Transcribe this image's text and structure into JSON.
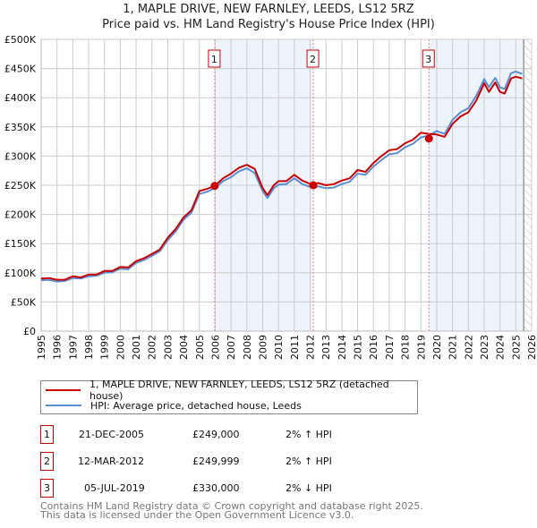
{
  "title": "1, MAPLE DRIVE, NEW FARNLEY, LEEDS, LS12 5RZ",
  "subtitle": "Price paid vs. HM Land Registry's House Price Index (HPI)",
  "chart_data": {
    "type": "line",
    "xlim": [
      1995,
      2026
    ],
    "ylim": [
      0,
      500000
    ],
    "x_ticks": [
      "1995",
      "1996",
      "1997",
      "1998",
      "1999",
      "2000",
      "2001",
      "2002",
      "2003",
      "2004",
      "2005",
      "2006",
      "2007",
      "2008",
      "2009",
      "2010",
      "2011",
      "2012",
      "2013",
      "2014",
      "2015",
      "2016",
      "2017",
      "2018",
      "2019",
      "2020",
      "2021",
      "2022",
      "2023",
      "2024",
      "2025",
      "2026"
    ],
    "y_ticks": [
      {
        "v": 0,
        "l": "£0"
      },
      {
        "v": 50000,
        "l": "£50K"
      },
      {
        "v": 100000,
        "l": "£100K"
      },
      {
        "v": 150000,
        "l": "£150K"
      },
      {
        "v": 200000,
        "l": "£200K"
      },
      {
        "v": 250000,
        "l": "£250K"
      },
      {
        "v": 300000,
        "l": "£300K"
      },
      {
        "v": 350000,
        "l": "£350K"
      },
      {
        "v": 400000,
        "l": "£400K"
      },
      {
        "v": 450000,
        "l": "£450K"
      },
      {
        "v": 500000,
        "l": "£500K"
      }
    ],
    "data_end": 2025.5,
    "x": [
      1995,
      1995.5,
      1996,
      1996.5,
      1997,
      1997.5,
      1998,
      1998.5,
      1999,
      1999.5,
      2000,
      2000.5,
      2001,
      2001.5,
      2002,
      2002.5,
      2003,
      2003.5,
      2004,
      2004.5,
      2005,
      2005.5,
      2005.97,
      2006.5,
      2007,
      2007.5,
      2008,
      2008.5,
      2009,
      2009.3,
      2009.7,
      2010,
      2010.5,
      2011,
      2011.5,
      2012.2,
      2012.5,
      2013,
      2013.5,
      2014,
      2014.5,
      2015,
      2015.5,
      2016,
      2016.5,
      2017,
      2017.5,
      2018,
      2018.5,
      2019,
      2019.5,
      2020,
      2020.5,
      2021,
      2021.5,
      2022,
      2022.5,
      2023,
      2023.3,
      2023.7,
      2024,
      2024.3,
      2024.7,
      2025,
      2025.4
    ],
    "series": [
      {
        "name": "1, MAPLE DRIVE, NEW FARNLEY, LEEDS, LS12 5RZ (detached house)",
        "color": "#cc0000",
        "values": [
          90000,
          91000,
          88000,
          88000,
          94000,
          92000,
          97000,
          97000,
          103000,
          103000,
          110000,
          109000,
          120000,
          125000,
          132000,
          140000,
          160000,
          175000,
          195000,
          207000,
          240000,
          244000,
          249000,
          262000,
          270000,
          280000,
          285000,
          278000,
          245000,
          233000,
          250000,
          257000,
          257000,
          268000,
          258000,
          250000,
          254000,
          250000,
          252000,
          258000,
          262000,
          276000,
          273000,
          288000,
          300000,
          310000,
          312000,
          322000,
          328000,
          340000,
          338000,
          337000,
          333000,
          355000,
          368000,
          375000,
          395000,
          425000,
          410000,
          426000,
          410000,
          407000,
          433000,
          436000,
          433000
        ]
      },
      {
        "name": "HPI: Average price, detached house, Leeds",
        "color": "#5b8fd4",
        "values": [
          87000,
          88000,
          85000,
          86000,
          91000,
          90000,
          94000,
          95000,
          100000,
          101000,
          107000,
          106000,
          117000,
          122000,
          129000,
          137000,
          156000,
          171000,
          191000,
          203000,
          235000,
          239000,
          245000,
          257000,
          264000,
          274000,
          279000,
          271000,
          240000,
          228000,
          245000,
          251000,
          252000,
          262000,
          252000,
          245000,
          248000,
          245000,
          246000,
          252000,
          256000,
          270000,
          268000,
          282000,
          293000,
          303000,
          305000,
          315000,
          321000,
          332000,
          335000,
          343000,
          338000,
          362000,
          375000,
          382000,
          403000,
          432000,
          418000,
          434000,
          418000,
          415000,
          442000,
          445000,
          441000
        ]
      }
    ],
    "sales": [
      {
        "label": "1",
        "x": 2005.97,
        "price": 249000
      },
      {
        "label": "2",
        "x": 2012.2,
        "price": 249999
      },
      {
        "label": "3",
        "x": 2019.51,
        "price": 330000
      }
    ]
  },
  "legend": {
    "items": [
      "1, MAPLE DRIVE, NEW FARNLEY, LEEDS, LS12 5RZ (detached house)",
      "HPI: Average price, detached house, Leeds"
    ]
  },
  "transactions": [
    {
      "num": "1",
      "date": "21-DEC-2005",
      "price": "£249,000",
      "hpi": "2% ↑ HPI"
    },
    {
      "num": "2",
      "date": "12-MAR-2012",
      "price": "£249,999",
      "hpi": "2% ↑ HPI"
    },
    {
      "num": "3",
      "date": "05-JUL-2019",
      "price": "£330,000",
      "hpi": "2% ↓ HPI"
    }
  ],
  "footer": {
    "line1": "Contains HM Land Registry data © Crown copyright and database right 2025.",
    "line2": "This data is licensed under the Open Government Licence v3.0."
  }
}
